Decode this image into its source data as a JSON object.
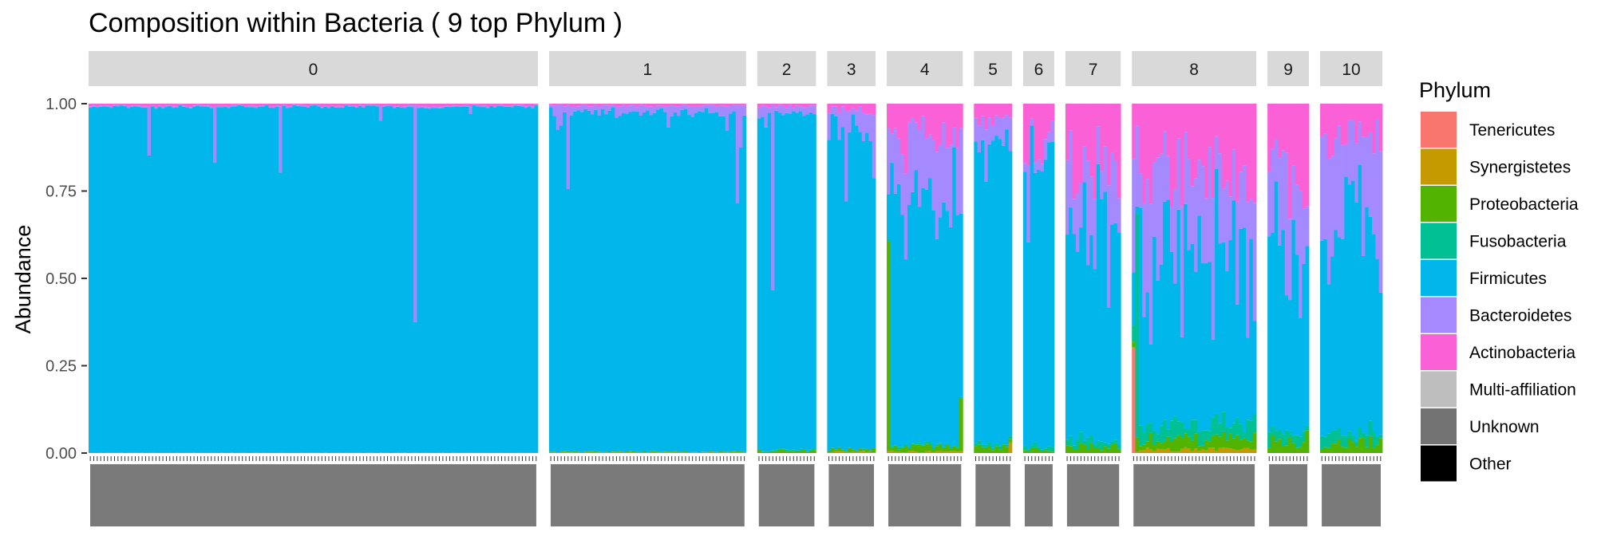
{
  "chart_data": {
    "type": "bar",
    "stacked": true,
    "faceted": true,
    "title": "Composition within Bacteria ( 9 top Phylum )",
    "ylabel": "Abundance",
    "ylim": [
      0,
      1
    ],
    "yticks": [
      "0.00",
      "0.25",
      "0.50",
      "0.75",
      "1.00"
    ],
    "legend": {
      "title": "Phylum",
      "position": "right",
      "entries": [
        {
          "name": "Tenericutes",
          "color": "#F8766D"
        },
        {
          "name": "Synergistetes",
          "color": "#C49A00"
        },
        {
          "name": "Proteobacteria",
          "color": "#53B400"
        },
        {
          "name": "Fusobacteria",
          "color": "#00C094"
        },
        {
          "name": "Firmicutes",
          "color": "#00B6EB"
        },
        {
          "name": "Bacteroidetes",
          "color": "#A58AFF"
        },
        {
          "name": "Actinobacteria",
          "color": "#FB61D7"
        },
        {
          "name": "Multi-affiliation",
          "color": "#BEBEBE"
        },
        {
          "name": "Unknown",
          "color": "#737373"
        },
        {
          "name": "Other",
          "color": "#000000"
        }
      ]
    },
    "panel_style": {
      "strip_color": "#D9D9D9",
      "axis_tick_color": "#333333"
    },
    "facets": [
      {
        "label": "0",
        "n": 130,
        "profile": {
          "act": 0.006,
          "bac": 0.003,
          "pro": 0.001,
          "fus": 0.0005
        },
        "spikes": [
          {
            "i": 17,
            "bac": 0.14
          },
          {
            "i": 36,
            "bac": 0.16
          },
          {
            "i": 55,
            "bac": 0.19
          },
          {
            "i": 94,
            "bac": 0.62
          },
          {
            "i": 84,
            "bac": 0.04
          },
          {
            "i": 110,
            "bac": 0.02
          }
        ]
      },
      {
        "label": "1",
        "n": 57,
        "profile": {
          "act": 0.006,
          "bac": 0.02,
          "pro": 0.002,
          "syn": 0.002
        },
        "spikes": [
          {
            "i": 5,
            "bac": 0.24
          },
          {
            "i": 3,
            "bac": 0.06
          },
          {
            "i": 2,
            "bac": 0.07
          },
          {
            "i": 34,
            "bac": 0.06
          },
          {
            "i": 51,
            "bac": 0.07
          },
          {
            "i": 54,
            "bac": 0.28
          },
          {
            "i": 55,
            "bac": 0.12
          }
        ]
      },
      {
        "label": "2",
        "n": 17,
        "profile": {
          "act": 0.008,
          "bac": 0.02,
          "pro": 0.006,
          "fus": 0.003
        },
        "spikes": [
          {
            "i": 4,
            "bac": 0.53
          },
          {
            "i": 2,
            "bac": 0.06
          }
        ]
      },
      {
        "label": "3",
        "n": 14,
        "profile": {
          "act": 0.02,
          "bac": 0.05,
          "pro": 0.008,
          "syn": 0.004
        },
        "spikes": [
          {
            "i": 5,
            "bac": 0.26
          },
          {
            "i": 10,
            "bac": 0.08
          },
          {
            "i": 13,
            "bac": 0.18
          }
        ]
      },
      {
        "label": "4",
        "n": 22,
        "profile": {
          "act": 0.09,
          "bac": 0.15,
          "pro": 0.015,
          "fus": 0.006,
          "syn": 0.004
        },
        "spikes": [
          {
            "i": 0,
            "pro": 0.6
          },
          {
            "i": 5,
            "act": 0.2
          },
          {
            "i": 14,
            "bac": 0.25
          },
          {
            "i": 21,
            "pro": 0.15
          }
        ]
      },
      {
        "label": "5",
        "n": 11,
        "profile": {
          "act": 0.05,
          "bac": 0.06,
          "pro": 0.015,
          "fus": 0.008
        },
        "spikes": [
          {
            "i": 3,
            "bac": 0.15
          },
          {
            "i": 10,
            "syn": 0.03
          }
        ]
      },
      {
        "label": "6",
        "n": 9,
        "profile": {
          "act": 0.12,
          "bac": 0.04,
          "pro": 0.01,
          "fus": 0.01
        },
        "spikes": [
          {
            "i": 1,
            "bac": 0.22
          }
        ]
      },
      {
        "label": "7",
        "n": 16,
        "profile": {
          "act": 0.17,
          "bac": 0.14,
          "pro": 0.02,
          "fus": 0.02
        },
        "spikes": [
          {
            "i": 6,
            "bac": 0.3
          },
          {
            "i": 12,
            "bac": 0.35
          }
        ]
      },
      {
        "label": "8",
        "n": 36,
        "profile": {
          "act": 0.2,
          "bac": 0.25,
          "pro": 0.03,
          "fus": 0.04,
          "syn": 0.01
        },
        "spikes": [
          {
            "i": 0,
            "ten": 0.3
          },
          {
            "i": 1,
            "fus": 0.72
          }
        ]
      },
      {
        "label": "9",
        "n": 12,
        "profile": {
          "act": 0.2,
          "bac": 0.25,
          "pro": 0.04,
          "fus": 0.03
        },
        "spikes": [
          {
            "i": 8,
            "bac": 0.2
          }
        ]
      },
      {
        "label": "10",
        "n": 18,
        "profile": {
          "act": 0.1,
          "bac": 0.25,
          "pro": 0.03,
          "fus": 0.03
        },
        "spikes": [
          {
            "i": 13,
            "bac": 0.2
          }
        ]
      }
    ]
  }
}
